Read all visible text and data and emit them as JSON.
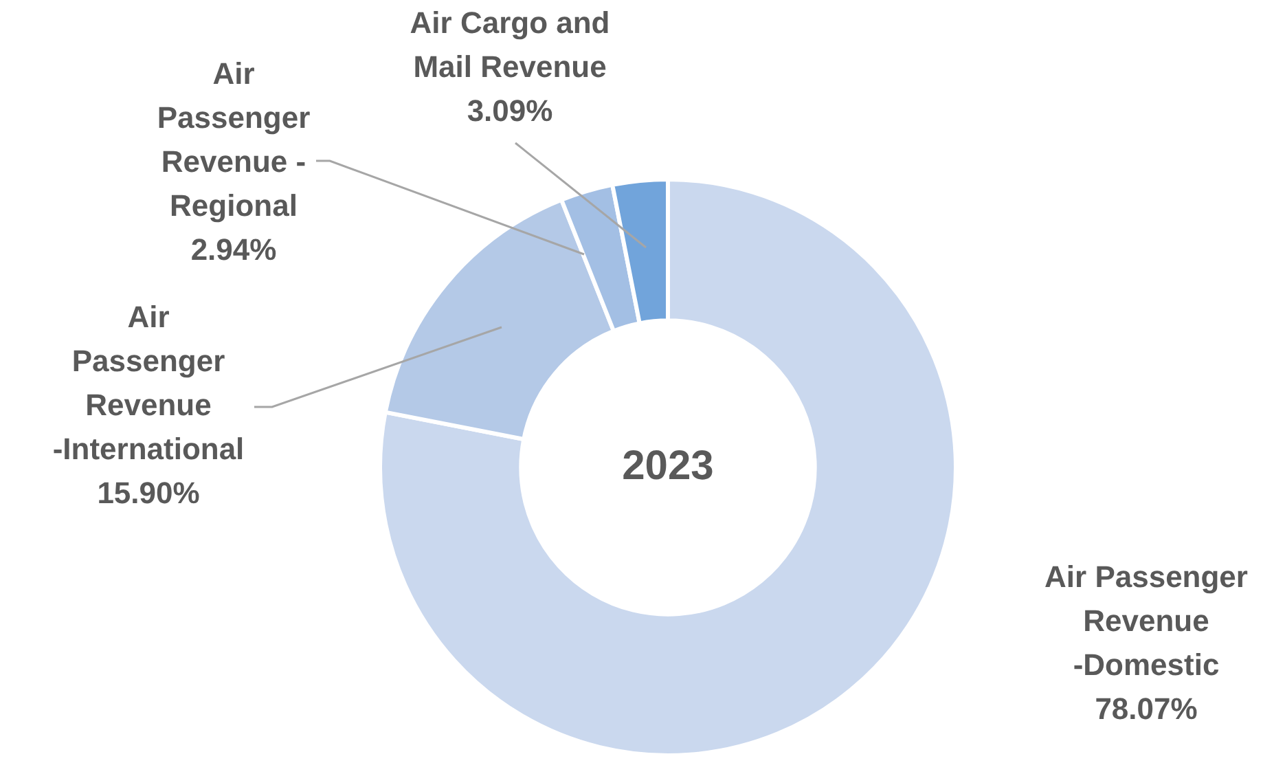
{
  "chart_data": {
    "type": "donut",
    "title": "2023",
    "categories": [
      "Air Passenger Revenue -Domestic",
      "Air Passenger Revenue -International",
      "Air Passenger Revenue - Regional",
      "Air Cargo and Mail Revenue"
    ],
    "values": [
      78.07,
      15.9,
      2.94,
      3.09
    ],
    "value_labels": [
      "78.07%",
      "15.90%",
      "2.94%",
      "3.09%"
    ],
    "colors": [
      "#cad8ee",
      "#b4c9e7",
      "#a3bfe4",
      "#71a4db"
    ],
    "legend": false
  }
}
